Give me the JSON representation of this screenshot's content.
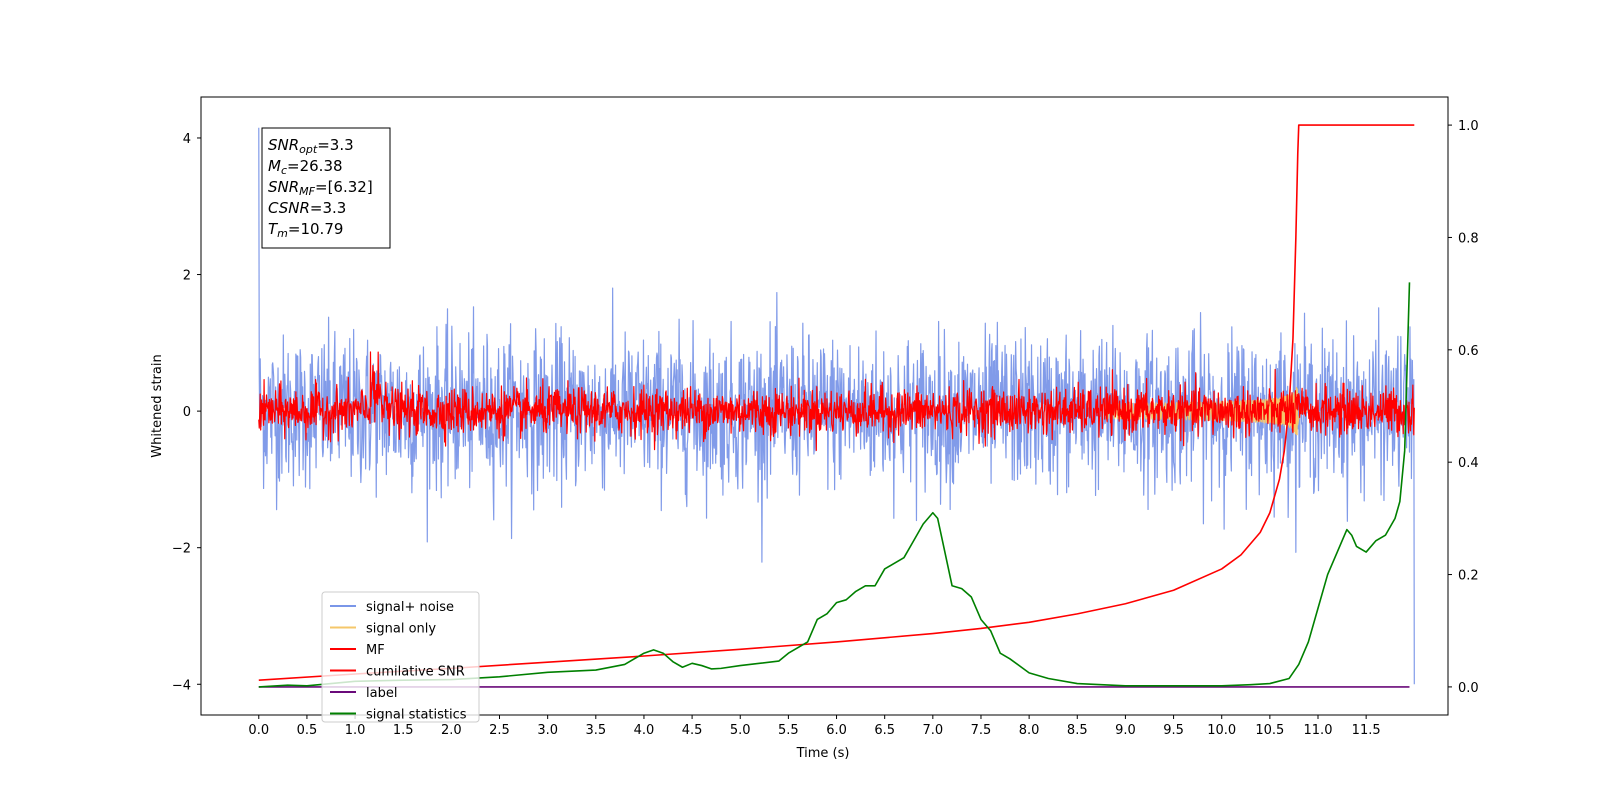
{
  "chart_data": {
    "type": "line",
    "xlabel": "Time (s)",
    "ylabel": "Whitened strain",
    "xlim": [
      -0.6,
      12.35
    ],
    "ylim": [
      -4.45,
      4.6
    ],
    "y2lim": [
      -0.05,
      1.05
    ],
    "x_ticks": [
      0.0,
      0.5,
      1.0,
      1.5,
      2.0,
      2.5,
      3.0,
      3.5,
      4.0,
      4.5,
      5.0,
      5.5,
      6.0,
      6.5,
      7.0,
      7.5,
      8.0,
      8.5,
      9.0,
      9.5,
      10.0,
      10.5,
      11.0,
      11.5
    ],
    "x_tick_labels": [
      "0.0",
      "0.5",
      "1.0",
      "1.5",
      "2.0",
      "2.5",
      "3.0",
      "3.5",
      "4.0",
      "4.5",
      "5.0",
      "5.5",
      "6.0",
      "6.5",
      "7.0",
      "7.5",
      "8.0",
      "8.5",
      "9.0",
      "9.5",
      "10.0",
      "10.5",
      "11.0",
      "11.5"
    ],
    "y_ticks": [
      -4,
      -2,
      0,
      2,
      4
    ],
    "y_tick_labels": [
      "−4",
      "−2",
      "0",
      "2",
      "4"
    ],
    "y2_ticks": [
      0.0,
      0.2,
      0.4,
      0.6,
      0.8,
      1.0
    ],
    "y2_tick_labels": [
      "0.0",
      "0.2",
      "0.4",
      "0.6",
      "0.8",
      "1.0"
    ],
    "legend_position": "lower-left",
    "grid": false,
    "annotation": [
      {
        "sym": "SNR",
        "sub": "opt",
        "value": "=3.3"
      },
      {
        "sym": "M",
        "sub": "c",
        "value": "=26.38"
      },
      {
        "sym": "SNR",
        "sub": "MF",
        "value": "=[6.32]"
      },
      {
        "sym": "CSNR",
        "sub": "",
        "value": "=3.3"
      },
      {
        "sym": "T",
        "sub": "m",
        "value": "=10.79"
      }
    ],
    "series": [
      {
        "name": "signal+ noise",
        "axis": "left",
        "color": "#7a96e8",
        "style": "noise",
        "amplitude": 0.55,
        "t_start": 0.0,
        "t_end": 12.0
      },
      {
        "name": "signal only",
        "axis": "left",
        "color": "#f5c76a",
        "style": "chirp",
        "peak": 0.35,
        "t_merge": 10.79
      },
      {
        "name": "MF",
        "axis": "left",
        "color": "#ff0000",
        "style": "noise",
        "amplitude": 0.17,
        "t_start": 0.0,
        "t_end": 12.0
      },
      {
        "name": "cumilative SNR",
        "axis": "right",
        "color": "#ff0000",
        "x": [
          0.0,
          1.0,
          2.0,
          3.0,
          4.0,
          5.0,
          6.0,
          7.0,
          7.5,
          8.0,
          8.5,
          9.0,
          9.5,
          10.0,
          10.2,
          10.4,
          10.5,
          10.6,
          10.65,
          10.7,
          10.74,
          10.77,
          10.79,
          10.8,
          12.0
        ],
        "y": [
          0.012,
          0.023,
          0.033,
          0.044,
          0.055,
          0.067,
          0.08,
          0.095,
          0.104,
          0.115,
          0.13,
          0.148,
          0.172,
          0.21,
          0.235,
          0.275,
          0.31,
          0.37,
          0.42,
          0.5,
          0.62,
          0.8,
          0.95,
          1.0,
          1.0
        ]
      },
      {
        "name": "label",
        "axis": "right",
        "color": "#6a0a7a",
        "x": [
          0.0,
          11.95
        ],
        "y": [
          0.0,
          0.0
        ]
      },
      {
        "name": "signal statistics",
        "axis": "right",
        "color": "#008000",
        "x": [
          0.0,
          0.3,
          0.5,
          1.0,
          1.5,
          2.0,
          2.5,
          3.0,
          3.5,
          3.8,
          4.0,
          4.1,
          4.2,
          4.3,
          4.4,
          4.5,
          4.6,
          4.7,
          4.8,
          5.0,
          5.2,
          5.4,
          5.5,
          5.7,
          5.8,
          5.9,
          6.0,
          6.1,
          6.2,
          6.3,
          6.4,
          6.5,
          6.6,
          6.7,
          6.8,
          6.9,
          7.0,
          7.05,
          7.1,
          7.2,
          7.3,
          7.4,
          7.5,
          7.6,
          7.7,
          7.8,
          8.0,
          8.2,
          8.5,
          9.0,
          9.5,
          10.0,
          10.3,
          10.5,
          10.7,
          10.8,
          10.9,
          11.0,
          11.1,
          11.2,
          11.3,
          11.35,
          11.4,
          11.5,
          11.6,
          11.7,
          11.8,
          11.85,
          11.9,
          11.95
        ],
        "y": [
          0.0,
          0.003,
          0.002,
          0.01,
          0.012,
          0.013,
          0.018,
          0.026,
          0.03,
          0.04,
          0.06,
          0.066,
          0.06,
          0.045,
          0.035,
          0.042,
          0.038,
          0.032,
          0.033,
          0.038,
          0.042,
          0.046,
          0.06,
          0.08,
          0.12,
          0.13,
          0.15,
          0.155,
          0.17,
          0.18,
          0.18,
          0.21,
          0.22,
          0.23,
          0.26,
          0.29,
          0.31,
          0.3,
          0.26,
          0.18,
          0.175,
          0.16,
          0.12,
          0.1,
          0.06,
          0.05,
          0.025,
          0.015,
          0.006,
          0.002,
          0.002,
          0.002,
          0.004,
          0.006,
          0.015,
          0.04,
          0.08,
          0.14,
          0.2,
          0.24,
          0.28,
          0.27,
          0.25,
          0.24,
          0.26,
          0.27,
          0.3,
          0.33,
          0.42,
          0.72
        ]
      }
    ]
  }
}
